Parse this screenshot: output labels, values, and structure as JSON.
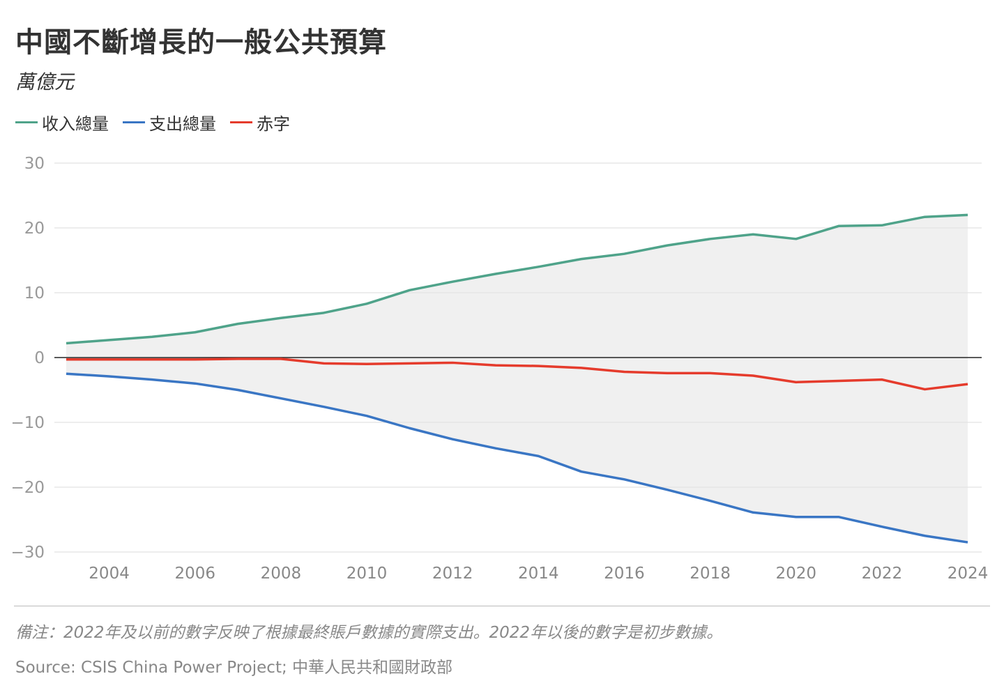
{
  "chart_data": {
    "type": "line",
    "title": "中國不斷增長的一般公共預算",
    "subtitle": "萬億元",
    "ylim": [
      -30,
      30
    ],
    "xlim": [
      2003,
      2024
    ],
    "yticks": [
      30,
      20,
      10,
      0,
      -10,
      -20,
      -30
    ],
    "ytick_labels": [
      "30",
      "20",
      "10",
      "0",
      "−10",
      "−20",
      "−30"
    ],
    "xticks": [
      2004,
      2006,
      2008,
      2010,
      2012,
      2014,
      2016,
      2018,
      2020,
      2022,
      2024
    ],
    "xtick_labels": [
      "2004",
      "2006",
      "2008",
      "2010",
      "2012",
      "2014",
      "2016",
      "2018",
      "2020",
      "2022",
      "2024"
    ],
    "grid": true,
    "legend_position": "top-left",
    "x": [
      2003,
      2004,
      2005,
      2006,
      2007,
      2008,
      2009,
      2010,
      2011,
      2012,
      2013,
      2014,
      2015,
      2016,
      2017,
      2018,
      2019,
      2020,
      2021,
      2022,
      2023,
      2024
    ],
    "series": [
      {
        "name": "收入總量",
        "color": "#4fa38a",
        "values": [
          2.2,
          2.7,
          3.2,
          3.9,
          5.2,
          6.1,
          6.9,
          8.3,
          10.4,
          11.7,
          12.9,
          14.0,
          15.2,
          16.0,
          17.3,
          18.3,
          19.0,
          18.3,
          20.3,
          20.4,
          21.7,
          22.0
        ]
      },
      {
        "name": "支出總量",
        "color": "#3a76c4",
        "values": [
          -2.5,
          -2.9,
          -3.4,
          -4.0,
          -5.0,
          -6.3,
          -7.6,
          -9.0,
          -10.9,
          -12.6,
          -14.0,
          -15.2,
          -17.6,
          -18.8,
          -20.4,
          -22.1,
          -23.9,
          -24.6,
          -24.6,
          -26.1,
          -27.5,
          -28.5
        ]
      },
      {
        "name": "赤字",
        "color": "#e53b2c",
        "values": [
          -0.3,
          -0.3,
          -0.3,
          -0.3,
          -0.2,
          -0.2,
          -0.9,
          -1.0,
          -0.9,
          -0.8,
          -1.2,
          -1.3,
          -1.6,
          -2.2,
          -2.4,
          -2.4,
          -2.8,
          -3.8,
          -3.6,
          -3.4,
          -4.9,
          -4.1
        ]
      }
    ],
    "shaded_between": [
      "收入總量",
      "支出總量"
    ],
    "shade_color": "#f0f0f0"
  },
  "footer": {
    "note": "備注：2022年及以前的數字反映了根據最終賬戶數據的實際支出。2022年以後的數字是初步數據。",
    "source": "Source: CSIS China Power Project; 中華人民共和國財政部"
  }
}
